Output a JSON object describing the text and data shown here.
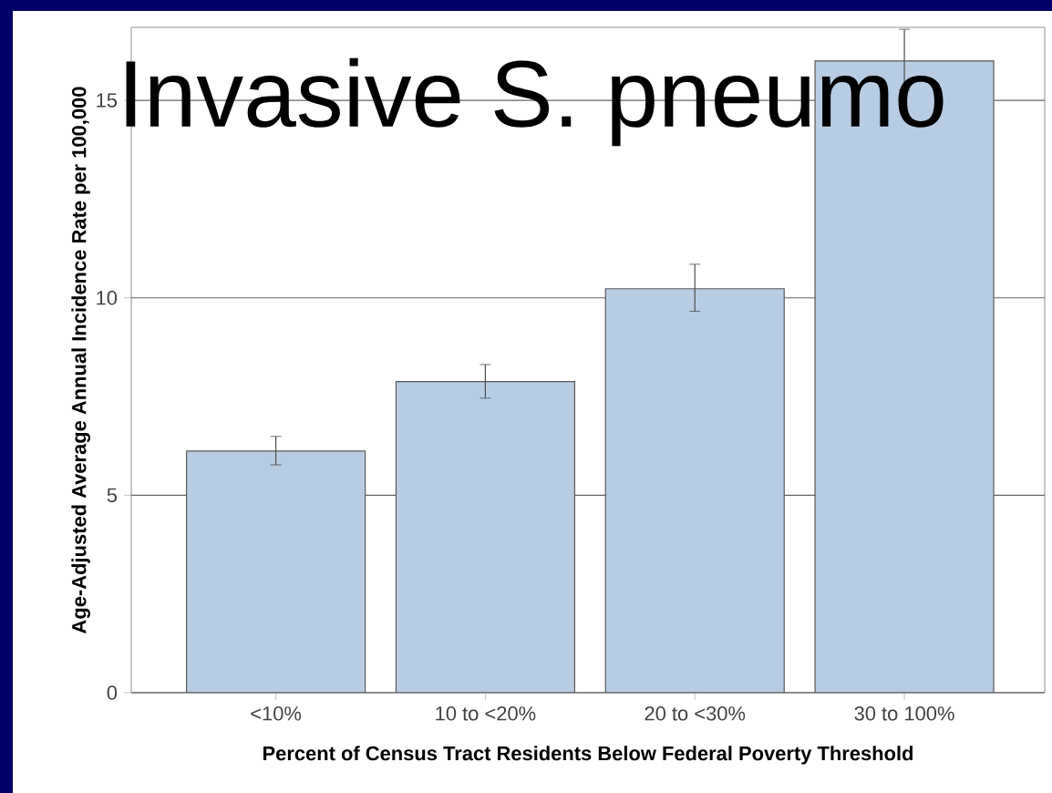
{
  "chart_data": {
    "type": "bar",
    "title": "Invasive S. pneumo",
    "xlabel": "Percent of Census Tract Residents Below Federal Poverty Threshold",
    "ylabel": "Age-Adjusted Average Annual Incidence Rate per 100,000",
    "categories": [
      "<10%",
      "10 to <20%",
      "20 to <30%",
      "30 to 100%"
    ],
    "values": [
      6.12,
      7.88,
      10.23,
      16.0
    ],
    "errors": [
      [
        5.77,
        6.49
      ],
      [
        7.46,
        8.31
      ],
      [
        9.66,
        10.85
      ],
      [
        15.26,
        16.8
      ]
    ],
    "color": "#b8cde4",
    "ylim": [
      0,
      16.85
    ],
    "yticks": [
      0,
      5,
      10,
      15
    ],
    "grid": "y"
  }
}
